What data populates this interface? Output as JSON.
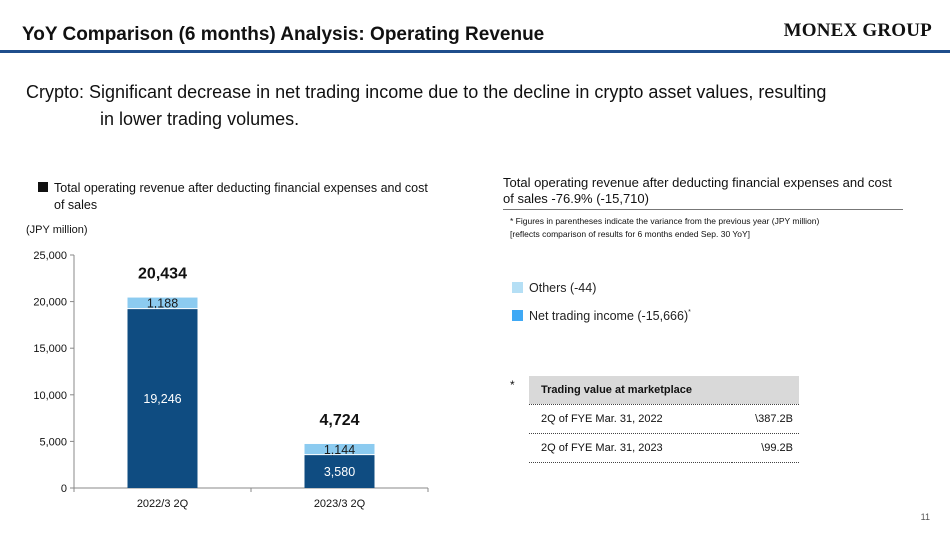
{
  "header": {
    "title": "YoY Comparison (6 months) Analysis: Operating Revenue",
    "logo_text": "MONEX GROUP",
    "rule_color": "#1f4e8c"
  },
  "headline": {
    "line1": "Crypto: Significant decrease in net trading income due to the decline in crypto asset values, resulting",
    "line2": "in lower trading volumes."
  },
  "left_panel": {
    "legend_title": "Total operating revenue after deducting financial expenses and cost of sales",
    "unit_label": "(JPY million)"
  },
  "chart_data": {
    "type": "bar",
    "stacked": true,
    "categories": [
      "2022/3 2Q",
      "2023/3 2Q"
    ],
    "series": [
      {
        "name": "Net trading income",
        "values": [
          19246,
          3580
        ],
        "labels": [
          "19,246",
          "3,580"
        ],
        "color": "#0f4c81"
      },
      {
        "name": "Others",
        "values": [
          1188,
          1144
        ],
        "labels": [
          "1,188",
          "1,144"
        ],
        "color": "#8ccbf0"
      }
    ],
    "totals": [
      20434,
      4724
    ],
    "total_labels": [
      "20,434",
      "4,724"
    ],
    "ylim": [
      0,
      25000
    ],
    "yticks": [
      0,
      5000,
      10000,
      15000,
      20000,
      25000
    ],
    "ytick_labels": [
      "0",
      "5,000",
      "10,000",
      "15,000",
      "20,000",
      "25,000"
    ],
    "xlabel": "",
    "ylabel": "",
    "grid": false
  },
  "right_panel": {
    "title": "Total operating revenue after deducting financial expenses and cost of sales -76.9% (-15,710)",
    "footnote_line1": "* Figures in parentheses indicate the variance from the previous year (JPY million)",
    "footnote_line2": "[reflects comparison of results for 6 months ended Sep. 30 YoY]",
    "legend_others": "Others (-44)",
    "legend_others_color": "#b5dff5",
    "legend_net": "Net trading income (-15,666)",
    "legend_net_mark": "*",
    "legend_net_color": "#3fa9f5",
    "asterisk": "*",
    "table": {
      "header": "Trading value at marketplace",
      "rows": [
        {
          "period": "2Q of FYE Mar. 31, 2022",
          "amount": "\\387.2B"
        },
        {
          "period": "2Q of FYE Mar. 31, 2023",
          "amount": "\\99.2B"
        }
      ]
    }
  },
  "footer": {
    "page_number": "11"
  }
}
